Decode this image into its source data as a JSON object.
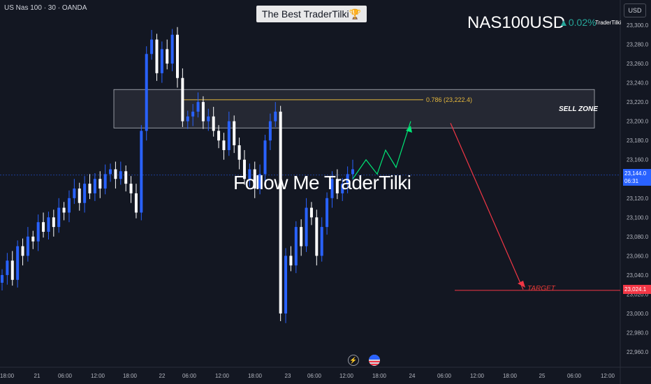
{
  "header": {
    "symbol_info": "US Nas 100 · 30 · OANDA",
    "title": "The Best TraderTilki🏆",
    "ticker": "NAS100USD",
    "change": "▲0.02%",
    "author": "TraderTilki",
    "currency": "USD"
  },
  "annotations": {
    "watermark": "Follow Me TraderTilki",
    "sell_zone": "SELL ZONE",
    "fib_level": "0.786 (23,222.4)",
    "target": "TARGET"
  },
  "price_tags": {
    "current_price": "23,144.0",
    "countdown": "06:31",
    "target_price": "23,024.1"
  },
  "icons": {
    "flash": "lightning-icon",
    "flag": "us-flag-icon"
  },
  "colors": {
    "background": "#131722",
    "candle_up": "#2962ff",
    "candle_down": "#ffffff",
    "sell_zone": "#787b86",
    "fib_line": "#e4b73d",
    "projection_up": "#00e676",
    "projection_down": "#f23645"
  },
  "chart_data": {
    "type": "candlestick",
    "symbol": "US Nas 100",
    "interval": "30",
    "y_ticks": [
      23300,
      23280,
      23260,
      23240,
      23220,
      23200,
      23180,
      23160,
      23140,
      23120,
      23100,
      23080,
      23060,
      23040,
      23020,
      23000,
      22980,
      22960
    ],
    "y_tick_labels": [
      "23,300.0",
      "23,280.0",
      "23,260.0",
      "23,240.0",
      "23,220.0",
      "23,200.0",
      "23,180.0",
      "23,160.0",
      "23,140.0",
      "23,120.0",
      "23,100.0",
      "23,080.0",
      "23,060.0",
      "23,040.0",
      "23,020.0",
      "23,000.0",
      "22,980.0",
      "22,960.0"
    ],
    "ylim": [
      22950,
      23308
    ],
    "x_tick_labels": [
      "18:00",
      "21",
      "06:00",
      "12:00",
      "18:00",
      "22",
      "06:00",
      "12:00",
      "18:00",
      "23",
      "06:00",
      "12:00",
      "18:00",
      "24",
      "06:00",
      "12:00",
      "18:00",
      "25",
      "06:00",
      "12:00"
    ],
    "closes": [
      23040,
      23055,
      23035,
      23070,
      23060,
      23080,
      23075,
      23095,
      23085,
      23100,
      23090,
      23110,
      23105,
      23120,
      23130,
      23115,
      23135,
      23125,
      23140,
      23130,
      23145,
      23150,
      23140,
      23148,
      23135,
      23125,
      23105,
      23190,
      23270,
      23285,
      23250,
      23275,
      23260,
      23290,
      23245,
      23200,
      23205,
      23210,
      23220,
      23200,
      23205,
      23190,
      23180,
      23170,
      23200,
      23175,
      23160,
      23140,
      23150,
      23130,
      23145,
      23180,
      23200,
      23210,
      23000,
      23060,
      23050,
      23090,
      23070,
      23110,
      23100,
      23060,
      23090,
      23120,
      23140,
      23125,
      23135,
      23145,
      23150
    ],
    "sell_zone": [
      23193,
      23233
    ],
    "fib_0_786": 23222.4,
    "current_price": 23144.0,
    "target_price": 23024.1,
    "projection_up": [
      23140,
      23160,
      23145,
      23170,
      23152,
      23200
    ],
    "projection_down": [
      23198,
      23025
    ]
  }
}
